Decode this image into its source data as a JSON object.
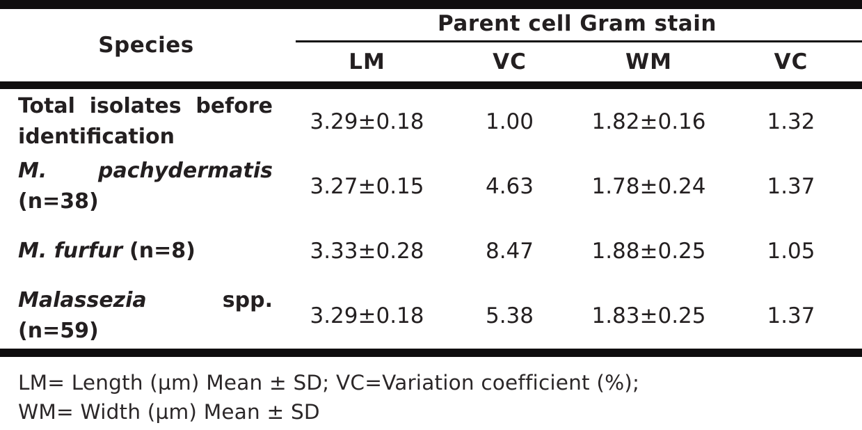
{
  "table": {
    "species_header": "Species",
    "group_header": "Parent cell Gram stain",
    "sub_headers": [
      "LM",
      "VC",
      "WM",
      "VC"
    ],
    "rows": [
      {
        "line1_words": [
          "Total",
          "isolates",
          "before"
        ],
        "line2": "identification",
        "values": [
          "3.29±0.18",
          "1.00",
          "1.82±0.16",
          "1.32"
        ]
      },
      {
        "line1_words": [
          "M.",
          "pachydermatis"
        ],
        "line2": "(n=38)",
        "values": [
          "3.27±0.15",
          "4.63",
          "1.78±0.24",
          "1.37"
        ]
      },
      {
        "name_italic": "M. furfur",
        "name_regular": "(n=8)",
        "values": [
          "3.33±0.28",
          "8.47",
          "1.88±0.25",
          "1.05"
        ]
      },
      {
        "line1_words": [
          "Malassezia",
          "spp."
        ],
        "line2": "(n=59)",
        "values": [
          "3.29±0.18",
          "5.38",
          "1.83±0.25",
          "1.37"
        ]
      }
    ],
    "footnote_lines": [
      "LM= Length (µm) Mean ± SD; VC=Variation coefficient (%);",
      "WM= Width (µm) Mean ± SD"
    ]
  },
  "colors": {
    "text": "#231f20",
    "rule": "#0f0d0e",
    "background": "#ffffff"
  },
  "chart_data": {
    "type": "table",
    "title": "Parent cell Gram stain",
    "columns": [
      "Species",
      "LM",
      "VC",
      "WM",
      "VC"
    ],
    "rows": [
      [
        "Total isolates before identification",
        "3.29±0.18",
        "1.00",
        "1.82±0.16",
        "1.32"
      ],
      [
        "M. pachydermatis (n=38)",
        "3.27±0.15",
        "4.63",
        "1.78±0.24",
        "1.37"
      ],
      [
        "M. furfur (n=8)",
        "3.33±0.28",
        "8.47",
        "1.88±0.25",
        "1.05"
      ],
      [
        "Malassezia spp. (n=59)",
        "3.29±0.18",
        "5.38",
        "1.83±0.25",
        "1.37"
      ]
    ],
    "footnote": "LM= Length (µm) Mean ± SD; VC=Variation coefficient (%); WM= Width (µm) Mean ± SD"
  }
}
